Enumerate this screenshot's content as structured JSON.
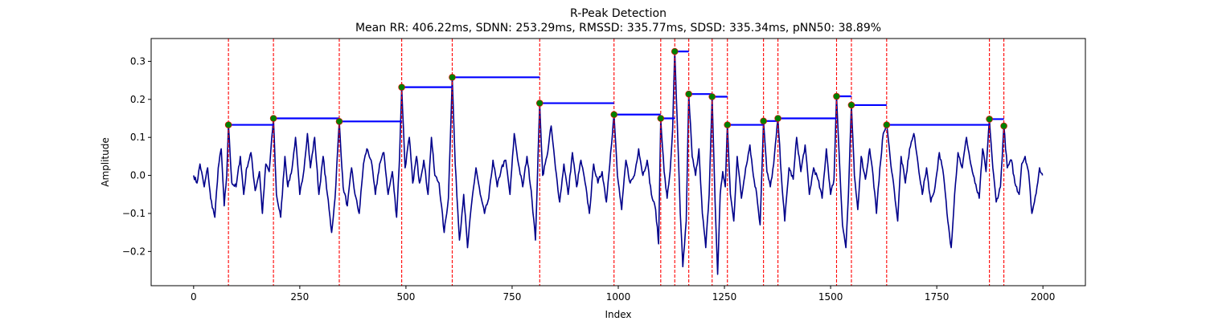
{
  "chart_data": {
    "type": "line",
    "title": "R-Peak Detection",
    "subtitle": "Mean RR: 406.22ms, SDNN: 253.29ms, RMSSD: 335.77ms, SDSD: 335.34ms, pNN50: 38.89%",
    "xlabel": "Index",
    "ylabel": "Amplitude",
    "xlim": [
      -100,
      2100
    ],
    "ylim": [
      -0.29,
      0.36
    ],
    "xticks": [
      0,
      250,
      500,
      750,
      1000,
      1250,
      1500,
      1750,
      2000
    ],
    "xtick_labels": [
      "0",
      "250",
      "500",
      "750",
      "1000",
      "1250",
      "1500",
      "1750",
      "2000"
    ],
    "yticks": [
      -0.2,
      -0.1,
      0.0,
      0.1,
      0.2,
      0.3
    ],
    "ytick_labels": [
      "−0.2",
      "−0.1",
      "0.0",
      "0.1",
      "0.2",
      "0.3"
    ],
    "grid": false,
    "colors": {
      "signal": "#00008b",
      "peak_lines": "#ff0000",
      "rr_segments": "#0000ff",
      "peak_marker_fill": "#008000",
      "peak_marker_edge": "#ff0000"
    },
    "signal": {
      "x_range": [
        0,
        1999
      ],
      "knots": [
        [
          0,
          0.0
        ],
        [
          8,
          -0.02
        ],
        [
          15,
          0.03
        ],
        [
          25,
          -0.03
        ],
        [
          33,
          0.02
        ],
        [
          40,
          -0.06
        ],
        [
          50,
          -0.11
        ],
        [
          58,
          0.02
        ],
        [
          65,
          0.07
        ],
        [
          72,
          -0.08
        ],
        [
          78,
          0.0
        ],
        [
          82,
          0.133
        ],
        [
          90,
          -0.02
        ],
        [
          100,
          -0.03
        ],
        [
          110,
          0.05
        ],
        [
          118,
          -0.05
        ],
        [
          125,
          0.02
        ],
        [
          135,
          0.06
        ],
        [
          145,
          -0.04
        ],
        [
          155,
          0.01
        ],
        [
          162,
          -0.1
        ],
        [
          170,
          0.03
        ],
        [
          178,
          0.01
        ],
        [
          188,
          0.15
        ],
        [
          195,
          -0.05
        ],
        [
          205,
          -0.11
        ],
        [
          215,
          0.05
        ],
        [
          222,
          -0.03
        ],
        [
          232,
          0.02
        ],
        [
          240,
          0.1
        ],
        [
          250,
          -0.05
        ],
        [
          258,
          0.0
        ],
        [
          268,
          0.11
        ],
        [
          275,
          0.02
        ],
        [
          285,
          0.1
        ],
        [
          295,
          -0.05
        ],
        [
          305,
          0.05
        ],
        [
          315,
          -0.05
        ],
        [
          325,
          -0.15
        ],
        [
          333,
          -0.06
        ],
        [
          343,
          0.142
        ],
        [
          352,
          -0.03
        ],
        [
          362,
          -0.08
        ],
        [
          372,
          0.02
        ],
        [
          380,
          -0.05
        ],
        [
          390,
          -0.1
        ],
        [
          400,
          0.03
        ],
        [
          408,
          0.07
        ],
        [
          418,
          0.04
        ],
        [
          428,
          -0.05
        ],
        [
          438,
          0.03
        ],
        [
          448,
          0.06
        ],
        [
          458,
          -0.05
        ],
        [
          468,
          0.01
        ],
        [
          478,
          -0.11
        ],
        [
          485,
          0.05
        ],
        [
          490,
          0.232
        ],
        [
          498,
          0.02
        ],
        [
          508,
          0.1
        ],
        [
          516,
          -0.02
        ],
        [
          525,
          0.05
        ],
        [
          532,
          -0.02
        ],
        [
          542,
          0.04
        ],
        [
          552,
          -0.05
        ],
        [
          560,
          0.1
        ],
        [
          568,
          0.0
        ],
        [
          578,
          -0.02
        ],
        [
          590,
          -0.15
        ],
        [
          600,
          -0.06
        ],
        [
          609,
          0.258
        ],
        [
          616,
          0.03
        ],
        [
          626,
          -0.17
        ],
        [
          636,
          -0.05
        ],
        [
          645,
          -0.19
        ],
        [
          655,
          -0.07
        ],
        [
          665,
          0.02
        ],
        [
          675,
          -0.05
        ],
        [
          685,
          -0.1
        ],
        [
          695,
          -0.06
        ],
        [
          705,
          0.04
        ],
        [
          715,
          -0.03
        ],
        [
          725,
          0.02
        ],
        [
          735,
          0.04
        ],
        [
          745,
          -0.05
        ],
        [
          755,
          0.11
        ],
        [
          765,
          0.03
        ],
        [
          775,
          -0.03
        ],
        [
          785,
          0.05
        ],
        [
          795,
          -0.04
        ],
        [
          805,
          -0.17
        ],
        [
          815,
          0.19
        ],
        [
          822,
          0.0
        ],
        [
          832,
          0.05
        ],
        [
          842,
          0.13
        ],
        [
          852,
          0.02
        ],
        [
          862,
          -0.07
        ],
        [
          872,
          0.03
        ],
        [
          882,
          -0.05
        ],
        [
          892,
          0.06
        ],
        [
          902,
          -0.03
        ],
        [
          912,
          0.04
        ],
        [
          922,
          -0.02
        ],
        [
          932,
          -0.1
        ],
        [
          942,
          0.03
        ],
        [
          952,
          -0.02
        ],
        [
          962,
          0.01
        ],
        [
          972,
          -0.07
        ],
        [
          982,
          0.06
        ],
        [
          990,
          0.16
        ],
        [
          998,
          0.0
        ],
        [
          1008,
          -0.09
        ],
        [
          1018,
          0.04
        ],
        [
          1028,
          -0.02
        ],
        [
          1038,
          0.0
        ],
        [
          1048,
          0.07
        ],
        [
          1058,
          0.0
        ],
        [
          1068,
          0.04
        ],
        [
          1078,
          -0.05
        ],
        [
          1088,
          -0.09
        ],
        [
          1095,
          -0.18
        ],
        [
          1100,
          0.15
        ],
        [
          1108,
          0.01
        ],
        [
          1115,
          -0.06
        ],
        [
          1122,
          0.01
        ],
        [
          1128,
          0.12
        ],
        [
          1133,
          0.326
        ],
        [
          1140,
          0.1
        ],
        [
          1146,
          -0.1
        ],
        [
          1152,
          -0.24
        ],
        [
          1160,
          -0.12
        ],
        [
          1166,
          0.214
        ],
        [
          1174,
          0.05
        ],
        [
          1182,
          0.0
        ],
        [
          1190,
          0.07
        ],
        [
          1198,
          -0.1
        ],
        [
          1206,
          -0.19
        ],
        [
          1214,
          -0.05
        ],
        [
          1221,
          0.207
        ],
        [
          1228,
          -0.07
        ],
        [
          1234,
          -0.26
        ],
        [
          1240,
          -0.05
        ],
        [
          1246,
          0.01
        ],
        [
          1252,
          -0.03
        ],
        [
          1257,
          0.133
        ],
        [
          1264,
          -0.05
        ],
        [
          1272,
          -0.12
        ],
        [
          1280,
          0.05
        ],
        [
          1290,
          -0.06
        ],
        [
          1300,
          0.02
        ],
        [
          1310,
          0.08
        ],
        [
          1318,
          0.0
        ],
        [
          1326,
          -0.05
        ],
        [
          1334,
          -0.13
        ],
        [
          1342,
          0.143
        ],
        [
          1350,
          0.01
        ],
        [
          1358,
          -0.03
        ],
        [
          1366,
          0.03
        ],
        [
          1376,
          0.15
        ],
        [
          1384,
          0.0
        ],
        [
          1392,
          -0.12
        ],
        [
          1402,
          0.02
        ],
        [
          1412,
          -0.01
        ],
        [
          1420,
          0.1
        ],
        [
          1430,
          0.01
        ],
        [
          1440,
          0.08
        ],
        [
          1450,
          -0.05
        ],
        [
          1460,
          0.02
        ],
        [
          1470,
          -0.01
        ],
        [
          1480,
          -0.06
        ],
        [
          1490,
          0.07
        ],
        [
          1500,
          -0.05
        ],
        [
          1508,
          -0.01
        ],
        [
          1514,
          0.208
        ],
        [
          1520,
          0.06
        ],
        [
          1528,
          -0.13
        ],
        [
          1536,
          -0.19
        ],
        [
          1542,
          -0.05
        ],
        [
          1549,
          0.185
        ],
        [
          1556,
          0.0
        ],
        [
          1564,
          -0.09
        ],
        [
          1572,
          0.05
        ],
        [
          1582,
          -0.01
        ],
        [
          1592,
          0.07
        ],
        [
          1600,
          0.0
        ],
        [
          1608,
          -0.1
        ],
        [
          1616,
          0.02
        ],
        [
          1624,
          0.11
        ],
        [
          1632,
          0.133
        ],
        [
          1640,
          0.05
        ],
        [
          1650,
          -0.04
        ],
        [
          1658,
          -0.12
        ],
        [
          1666,
          0.05
        ],
        [
          1676,
          -0.02
        ],
        [
          1686,
          0.07
        ],
        [
          1696,
          0.11
        ],
        [
          1706,
          0.03
        ],
        [
          1716,
          -0.05
        ],
        [
          1726,
          0.02
        ],
        [
          1736,
          -0.07
        ],
        [
          1746,
          -0.03
        ],
        [
          1756,
          0.06
        ],
        [
          1766,
          0.0
        ],
        [
          1776,
          -0.12
        ],
        [
          1784,
          -0.19
        ],
        [
          1792,
          -0.05
        ],
        [
          1800,
          0.06
        ],
        [
          1810,
          0.02
        ],
        [
          1820,
          0.1
        ],
        [
          1830,
          0.03
        ],
        [
          1840,
          -0.02
        ],
        [
          1850,
          -0.06
        ],
        [
          1858,
          0.07
        ],
        [
          1866,
          0.01
        ],
        [
          1874,
          0.148
        ],
        [
          1882,
          0.02
        ],
        [
          1890,
          -0.07
        ],
        [
          1900,
          -0.03
        ],
        [
          1908,
          0.13
        ],
        [
          1916,
          0.02
        ],
        [
          1926,
          0.04
        ],
        [
          1934,
          -0.02
        ],
        [
          1944,
          -0.05
        ],
        [
          1950,
          0.03
        ],
        [
          1958,
          0.05
        ],
        [
          1966,
          0.01
        ],
        [
          1974,
          -0.1
        ],
        [
          1980,
          -0.07
        ],
        [
          1986,
          -0.03
        ],
        [
          1992,
          0.02
        ],
        [
          1999,
          0.0
        ]
      ]
    },
    "peaks": {
      "x": [
        82,
        188,
        343,
        490,
        609,
        815,
        990,
        1100,
        1133,
        1166,
        1221,
        1257,
        1342,
        1376,
        1514,
        1549,
        1632,
        1874,
        1908
      ],
      "y": [
        0.133,
        0.15,
        0.142,
        0.232,
        0.258,
        0.19,
        0.16,
        0.15,
        0.326,
        0.214,
        0.207,
        0.133,
        0.143,
        0.15,
        0.208,
        0.185,
        0.133,
        0.148,
        0.13
      ]
    }
  }
}
